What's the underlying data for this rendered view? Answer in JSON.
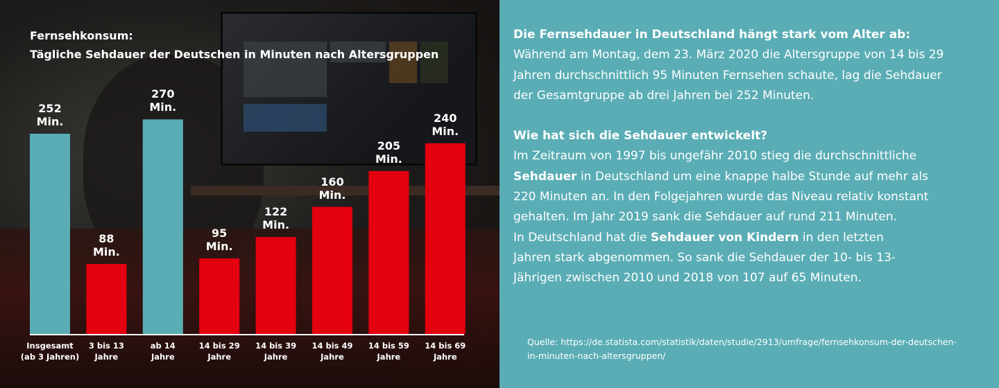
{
  "chart_data": {
    "type": "bar",
    "title_line1": "Fernsehkonsum:",
    "title_line2": "Tägliche Sehdauer der Deutschen in Minuten nach Altersgruppen",
    "categories": [
      [
        "Insgesamt",
        "(ab 3 Jahren)"
      ],
      [
        "3 bis 13",
        "Jahre"
      ],
      [
        "ab 14",
        "Jahre"
      ],
      [
        "14 bis 29",
        "Jahre"
      ],
      [
        "14 bis 39",
        "Jahre"
      ],
      [
        "14 bis 49",
        "Jahre"
      ],
      [
        "14 bis 59",
        "Jahre"
      ],
      [
        "14 bis 69",
        "Jahre"
      ]
    ],
    "values": [
      252,
      88,
      270,
      95,
      122,
      160,
      205,
      240
    ],
    "unit": "Min.",
    "colors": [
      "#5aadb5",
      "#e3000f",
      "#5aadb5",
      "#e3000f",
      "#e3000f",
      "#e3000f",
      "#e3000f",
      "#e3000f"
    ],
    "ylim": [
      0,
      280
    ],
    "grid": false
  },
  "text": {
    "h1": "Die Fernsehdauer in Deutschland hängt stark vom Alter ab:",
    "p1": "Während am Montag, dem 23. März 2020 die Altersgruppe von 14 bis 29 Jahren durchschnittlich 95 Minuten Fernsehen schaute, lag die Sehdauer der Gesamtgruppe ab drei Jahren bei 252 Minuten.",
    "h2": "Wie hat sich die Sehdauer entwickelt?",
    "p2a": "Im Zeitraum von 1997 bis ungefähr 2010 stieg die durchschnittliche ",
    "p2b": "Sehdauer",
    "p2c": " in Deutschland um eine knappe halbe Stunde auf mehr als 220 Minuten an. In den Folgejahren wurde das Niveau relativ konstant gehalten. Im Jahr 2019 sank die Sehdauer auf rund 211 Minuten.",
    "p3a": "In Deutschland hat die ",
    "p3b": "Sehdauer von Kindern",
    "p3c": " in den letzten Jahren stark abgenommen. So sank die Sehdauer der 10- bis 13-Jährigen zwischen 2010 und 2018 von 107 auf 65 Minuten.",
    "source": "Quelle: https://de.statista.com/statistik/daten/studie/2913/umfrage/fernsehkonsum-der-deutschen-in-minuten-nach-altersgruppen/"
  }
}
